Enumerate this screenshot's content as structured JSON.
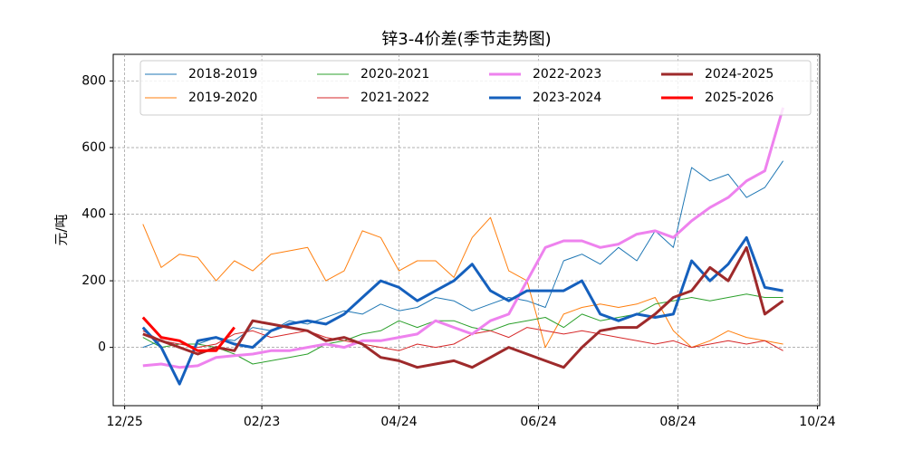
{
  "chart_data": {
    "type": "line",
    "title": "锌3-4价差(季节走势图)",
    "y_label": "元/吨",
    "x": [
      "01/02",
      "01/10",
      "01/18",
      "01/26",
      "02/03",
      "02/11",
      "02/19",
      "02/27",
      "03/07",
      "03/15",
      "03/23",
      "03/31",
      "04/08",
      "04/16",
      "04/24",
      "05/02",
      "05/10",
      "05/18",
      "05/26",
      "06/03",
      "06/11",
      "06/19",
      "06/27",
      "07/05",
      "07/13",
      "07/21",
      "07/29",
      "08/06",
      "08/14",
      "08/22",
      "08/30",
      "09/07",
      "09/15",
      "09/23",
      "10/01",
      "10/09"
    ],
    "xlim": [
      "12/20",
      "10/25"
    ],
    "xticks": [
      "12/25",
      "02/23",
      "04/24",
      "06/24",
      "08/24",
      "10/24"
    ],
    "ylim": [
      -175,
      880
    ],
    "yticks": [
      0,
      200,
      400,
      600,
      800
    ],
    "grid": true,
    "series": [
      {
        "name": "2018-2019",
        "color": "#1f77b4",
        "linewidth": 1,
        "values": [
          0,
          20,
          10,
          10,
          30,
          20,
          60,
          50,
          80,
          70,
          90,
          110,
          100,
          130,
          110,
          120,
          150,
          140,
          110,
          130,
          150,
          140,
          120,
          260,
          280,
          250,
          300,
          260,
          350,
          300,
          540,
          500,
          520,
          450,
          480,
          560
        ]
      },
      {
        "name": "2019-2020",
        "color": "#ff7f0e",
        "linewidth": 1,
        "values": [
          370,
          240,
          280,
          270,
          200,
          260,
          230,
          280,
          290,
          300,
          200,
          230,
          350,
          330,
          230,
          260,
          260,
          210,
          330,
          390,
          230,
          200,
          0,
          100,
          120,
          130,
          120,
          130,
          150,
          50,
          0,
          20,
          50,
          30,
          20,
          10
        ]
      },
      {
        "name": "2020-2021",
        "color": "#2ca02c",
        "linewidth": 1,
        "values": [
          30,
          0,
          10,
          10,
          0,
          -20,
          -50,
          -40,
          -30,
          -20,
          10,
          20,
          40,
          50,
          80,
          60,
          80,
          80,
          60,
          50,
          70,
          80,
          90,
          60,
          100,
          80,
          90,
          100,
          130,
          140,
          150,
          140,
          150,
          160,
          150,
          150
        ]
      },
      {
        "name": "2021-2022",
        "color": "#d62728",
        "linewidth": 1,
        "values": [
          50,
          20,
          10,
          0,
          10,
          40,
          50,
          30,
          40,
          50,
          30,
          20,
          10,
          0,
          -10,
          10,
          0,
          10,
          40,
          50,
          30,
          60,
          50,
          40,
          50,
          40,
          30,
          20,
          10,
          20,
          0,
          10,
          20,
          10,
          20,
          -10
        ]
      },
      {
        "name": "2022-2023",
        "color": "#ee82ee",
        "linewidth": 3,
        "values": [
          -55,
          -50,
          -60,
          -55,
          -30,
          -25,
          -20,
          -10,
          -10,
          0,
          10,
          0,
          20,
          20,
          30,
          40,
          80,
          60,
          40,
          80,
          100,
          200,
          300,
          320,
          320,
          300,
          310,
          340,
          350,
          330,
          380,
          420,
          450,
          500,
          530,
          720
        ]
      },
      {
        "name": "2023-2024",
        "color": "#1560bd",
        "linewidth": 3,
        "values": [
          60,
          0,
          -110,
          20,
          30,
          10,
          0,
          50,
          70,
          80,
          70,
          100,
          150,
          200,
          180,
          140,
          170,
          200,
          250,
          170,
          140,
          170,
          170,
          170,
          200,
          100,
          80,
          100,
          90,
          100,
          260,
          200,
          250,
          330,
          180,
          170
        ]
      },
      {
        "name": "2024-2025",
        "color": "#9e2a2b",
        "linewidth": 3,
        "values": [
          40,
          20,
          0,
          -20,
          0,
          -10,
          80,
          70,
          60,
          50,
          20,
          30,
          10,
          -30,
          -40,
          -60,
          -50,
          -40,
          -60,
          -30,
          0,
          -20,
          -40,
          -60,
          0,
          50,
          60,
          60,
          100,
          150,
          170,
          240,
          200,
          300,
          100,
          140
        ]
      },
      {
        "name": "2025-2026",
        "color": "#ff0000",
        "linewidth": 3,
        "values": [
          90,
          30,
          20,
          -10,
          -10,
          60,
          null,
          null,
          null,
          null,
          null,
          null,
          null,
          null,
          null,
          null,
          null,
          null,
          null,
          null,
          null,
          null,
          null,
          null,
          null,
          null,
          null,
          null,
          null,
          null,
          null,
          null,
          null,
          null,
          null,
          null
        ]
      }
    ]
  }
}
